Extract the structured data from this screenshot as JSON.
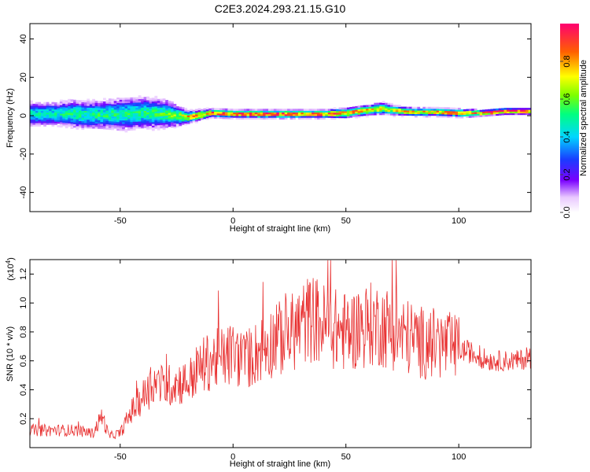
{
  "chart_data": [
    {
      "type": "heatmap",
      "title": "C2E3.2024.293.21.15.G10",
      "xlabel": "Height of straight line (km)",
      "ylabel": "Frequency (Hz)",
      "xlim": [
        -90,
        132
      ],
      "ylim": [
        -50,
        48
      ],
      "xticks": [
        -50,
        0,
        50,
        100
      ],
      "yticks": [
        -40,
        -20,
        0,
        20,
        40
      ],
      "colorbar": {
        "label": "Normalized spectral amplitude",
        "range": [
          0.0,
          1.0
        ],
        "ticks": [
          "0.0",
          "0.2",
          "0.4",
          "0.6",
          "0.8"
        ],
        "tick_values": [
          0.0,
          0.2,
          0.4,
          0.6,
          0.8
        ]
      },
      "ridge": {
        "x": [
          -90,
          -80,
          -70,
          -60,
          -50,
          -40,
          -30,
          -25,
          -20,
          -15,
          -10,
          0,
          10,
          20,
          30,
          40,
          50,
          55,
          60,
          65,
          70,
          80,
          90,
          100,
          110,
          115,
          120,
          132
        ],
        "freq": [
          0.5,
          0.5,
          0.5,
          0.0,
          0.5,
          1.0,
          0.5,
          -0.5,
          -1.0,
          0.0,
          1.0,
          0.5,
          0.5,
          0.5,
          0.5,
          0.5,
          1.0,
          2.0,
          2.5,
          3.5,
          2.5,
          1.5,
          1.5,
          1.0,
          1.0,
          1.5,
          2.0,
          2.0
        ],
        "spread": [
          6,
          6,
          7,
          7,
          8,
          8,
          7,
          5,
          3,
          2.5,
          2,
          2,
          2,
          2,
          2,
          2,
          2.5,
          2.5,
          2.5,
          3,
          2.5,
          2,
          2,
          2,
          1.5,
          1.5,
          1.5,
          1.5
        ],
        "peak_amplitude": [
          0.45,
          0.45,
          0.5,
          0.5,
          0.5,
          0.5,
          0.55,
          0.6,
          0.75,
          0.8,
          0.85,
          0.88,
          0.9,
          0.9,
          0.88,
          0.85,
          0.8,
          0.78,
          0.75,
          0.7,
          0.7,
          0.75,
          0.8,
          0.8,
          0.85,
          0.95,
          0.97,
          0.97
        ]
      }
    },
    {
      "type": "line",
      "xlabel": "Height of straight line (km)",
      "ylabel": "SNR (10 * v/v)",
      "scale_note": "(x10",
      "scale_exp": "4",
      "scale_close": ")",
      "xlim": [
        -90,
        132
      ],
      "ylim": [
        0,
        1.3
      ],
      "xticks": [
        -50,
        0,
        50,
        100
      ],
      "yticks": [
        0.2,
        0.4,
        0.6,
        0.8,
        1.0,
        1.2
      ],
      "color": "#e83030",
      "series": [
        {
          "x": [
            -90,
            -80,
            -70,
            -62,
            -58,
            -55,
            -50,
            -45,
            -40,
            -35,
            -30,
            -25,
            -20,
            -15,
            -10,
            -5,
            0,
            5,
            10,
            15,
            20,
            25,
            30,
            35,
            40,
            45,
            50,
            55,
            60,
            65,
            70,
            75,
            80,
            85,
            90,
            95,
            100,
            105,
            110,
            115,
            120,
            125,
            132
          ],
          "y": [
            0.12,
            0.12,
            0.12,
            0.1,
            0.22,
            0.08,
            0.1,
            0.25,
            0.35,
            0.45,
            0.42,
            0.45,
            0.45,
            0.55,
            0.6,
            0.62,
            0.65,
            0.6,
            0.65,
            0.72,
            0.75,
            0.78,
            0.85,
            0.9,
            0.85,
            0.82,
            0.8,
            0.82,
            0.85,
            0.85,
            0.82,
            0.78,
            0.75,
            0.72,
            0.72,
            0.7,
            0.68,
            0.66,
            0.62,
            0.6,
            0.6,
            0.6,
            0.62
          ]
        }
      ]
    }
  ]
}
